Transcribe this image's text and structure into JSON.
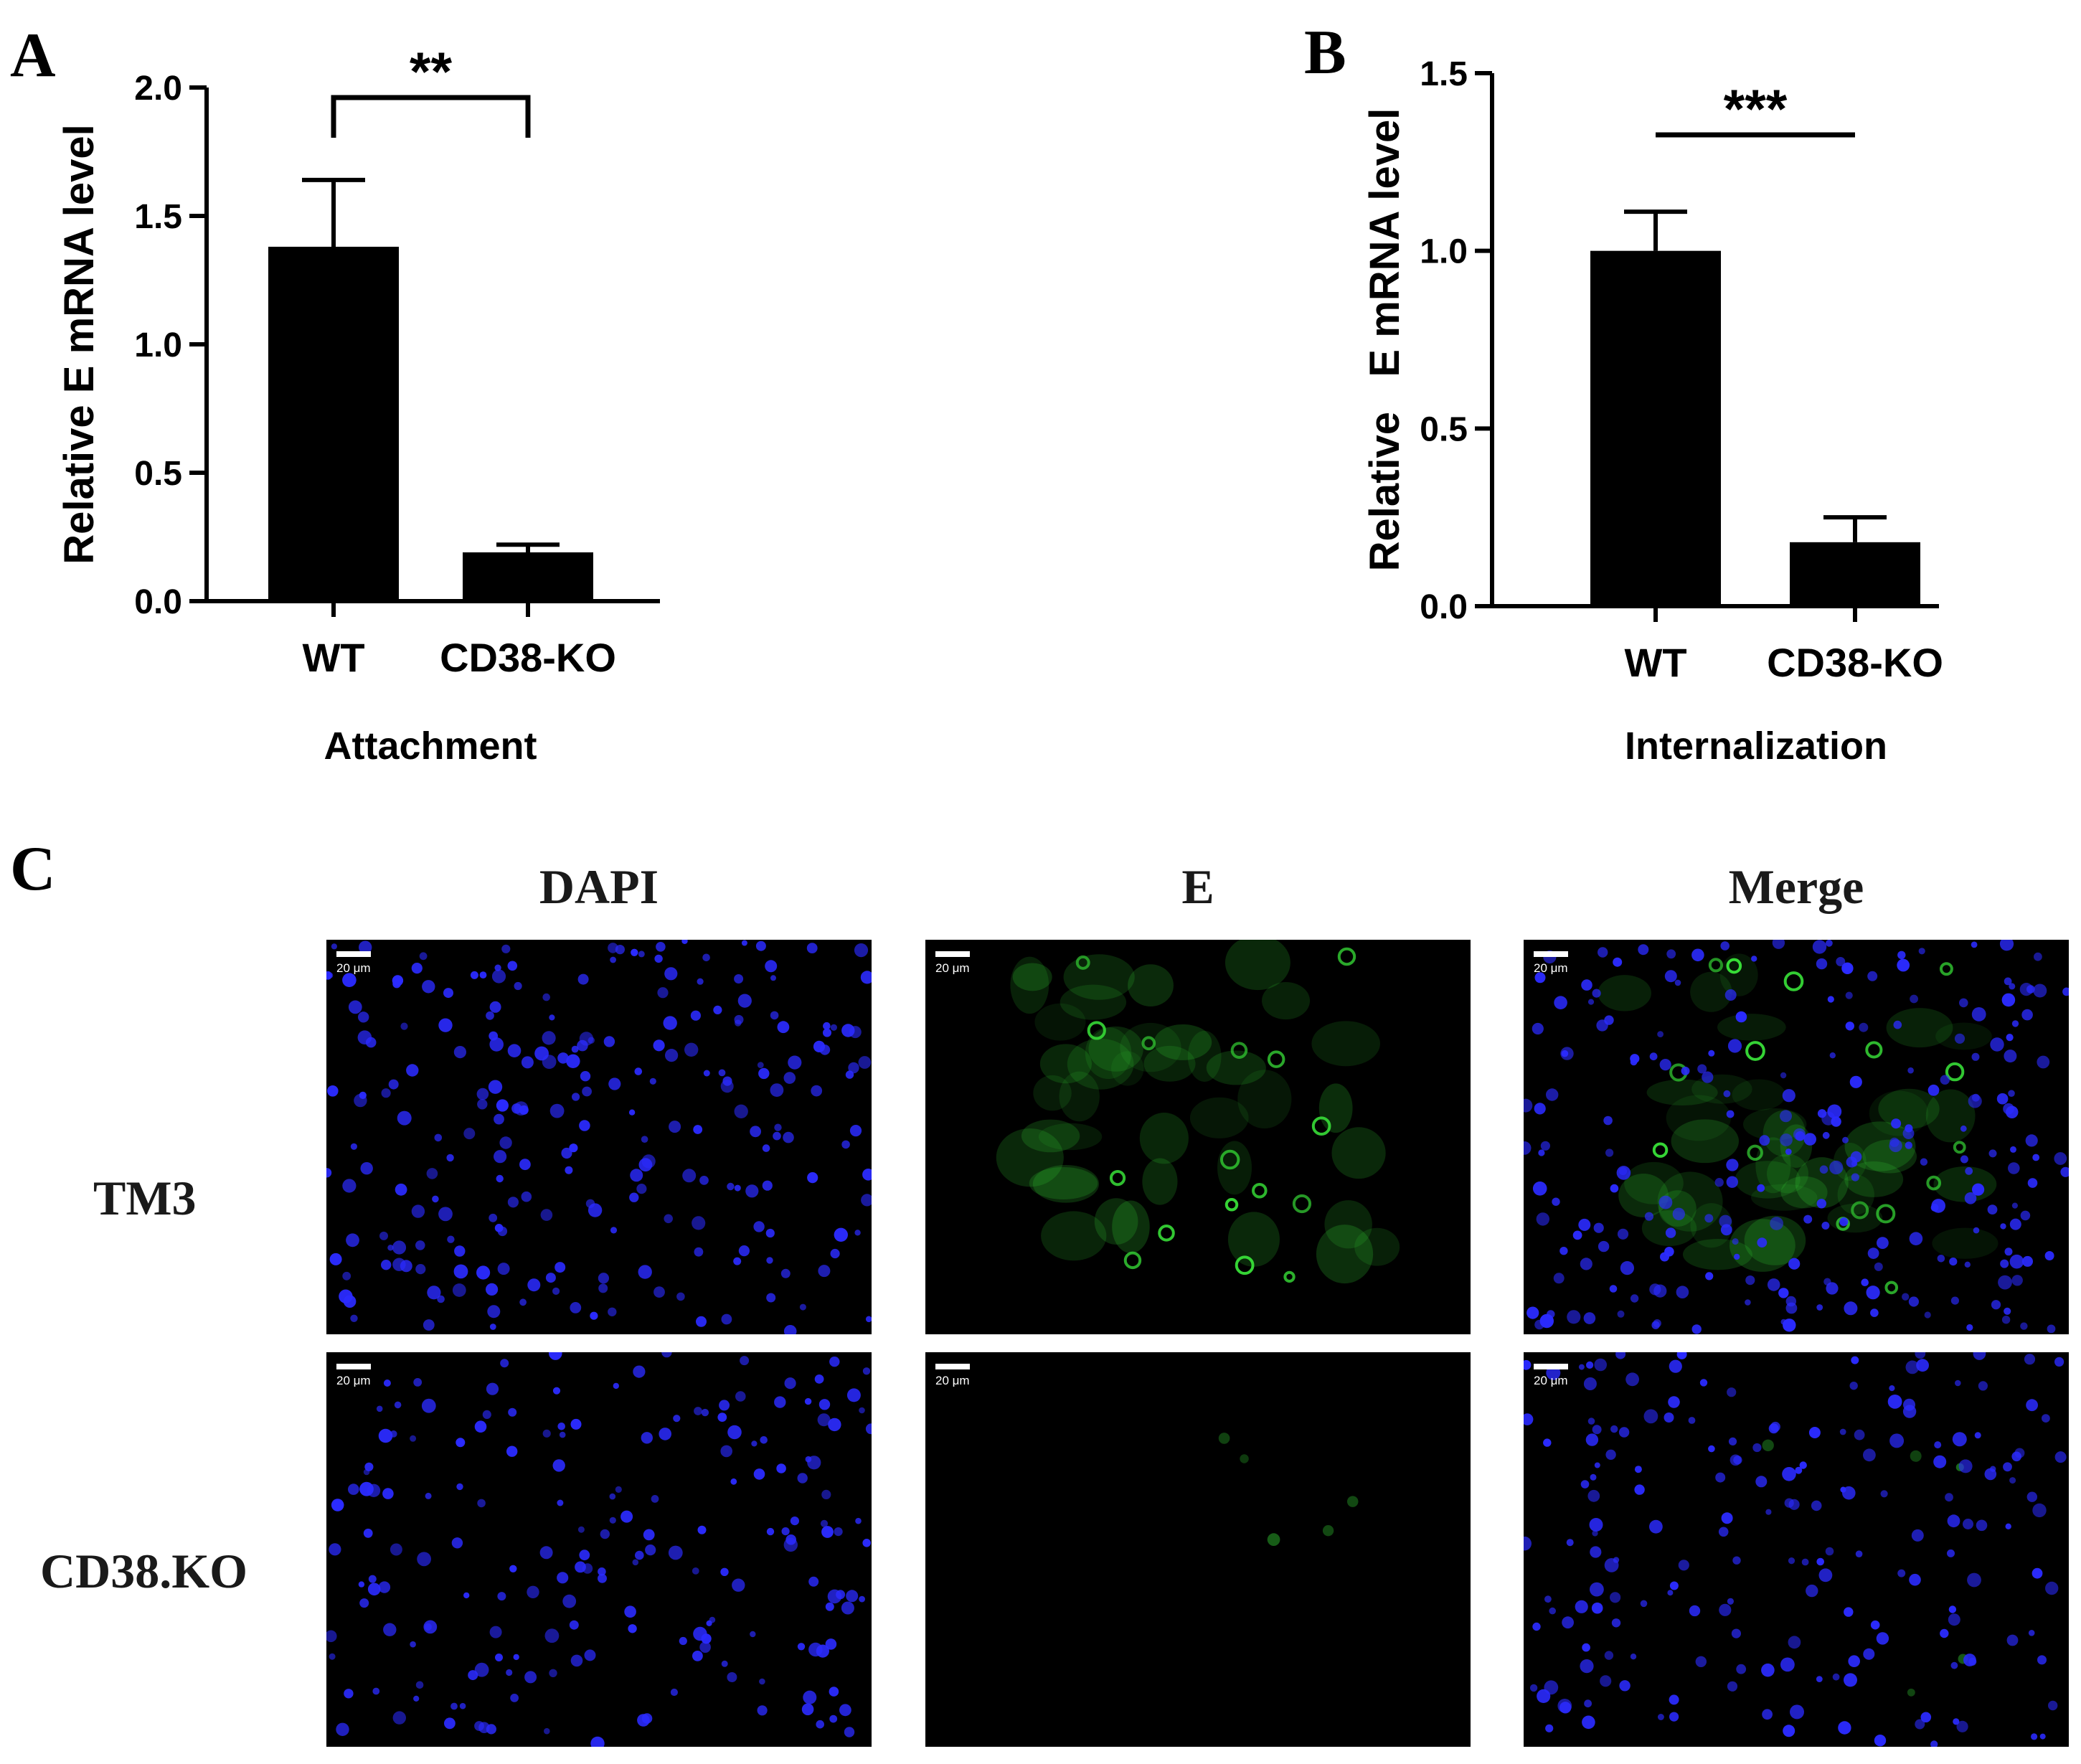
{
  "panels": {
    "a": "A",
    "b": "B",
    "c": "C"
  },
  "chart_data": [
    {
      "type": "bar",
      "categories": [
        "WT",
        "CD38-KO"
      ],
      "values": [
        1.38,
        0.19
      ],
      "errors": [
        0.26,
        0.03
      ],
      "ylabel": "Relative E mRNA level",
      "xlabel": "Attachment",
      "ylim": [
        0,
        2.0
      ],
      "yticks": [
        "0.0",
        "0.5",
        "1.0",
        "1.5",
        "2.0"
      ],
      "significance": "**",
      "bar_color": "#000000"
    },
    {
      "type": "bar",
      "categories": [
        "WT",
        "CD38-KO"
      ],
      "values": [
        1.0,
        0.18
      ],
      "errors": [
        0.11,
        0.07
      ],
      "ylabel": "Relative   E mRNA level",
      "xlabel": "Internalization",
      "ylim": [
        0,
        1.5
      ],
      "yticks": [
        "0.0",
        "0.5",
        "1.0",
        "1.5"
      ],
      "significance": "***",
      "bar_color": "#000000"
    }
  ],
  "micrographs": {
    "columns": [
      "DAPI",
      "E",
      "Merge"
    ],
    "rows": [
      "TM3",
      "CD38.KO"
    ],
    "scale_label": "20 μm",
    "colors": {
      "nucleus": "#2b2bff",
      "stain": "#38e038",
      "background": "#000000"
    }
  }
}
